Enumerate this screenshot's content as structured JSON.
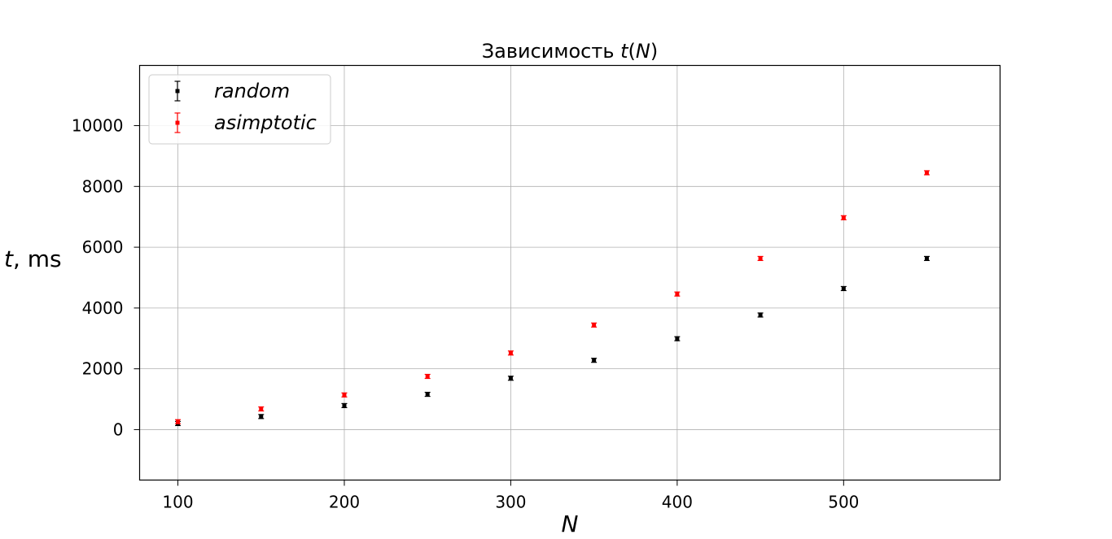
{
  "chart_data": {
    "type": "scatter",
    "title_prefix": "Зависимость ",
    "title_var": "t",
    "title_arg": "N",
    "xlabel": "N",
    "ylabel_var": "t",
    "ylabel_unit": ", ms",
    "xlim": [
      77,
      594
    ],
    "ylim": [
      -1660,
      11980
    ],
    "xticks": [
      100,
      200,
      300,
      400,
      500
    ],
    "yticks": [
      0,
      2000,
      4000,
      6000,
      8000,
      10000
    ],
    "grid": true,
    "legend_position": "top-left",
    "series": [
      {
        "name": "random",
        "color": "#000000",
        "x": [
          100,
          150,
          200,
          250,
          300,
          350,
          400,
          450,
          500,
          550
        ],
        "y": [
          200,
          430,
          790,
          1160,
          1690,
          2280,
          2990,
          3770,
          4640,
          5630
        ],
        "yerr": 30
      },
      {
        "name": "asimptotic",
        "color": "#ff0000",
        "x": [
          100,
          150,
          200,
          250,
          300,
          350,
          400,
          450,
          500,
          550
        ],
        "y": [
          260,
          680,
          1140,
          1750,
          2520,
          3440,
          4460,
          5630,
          6970,
          8450
        ],
        "yerr": 30
      }
    ]
  }
}
